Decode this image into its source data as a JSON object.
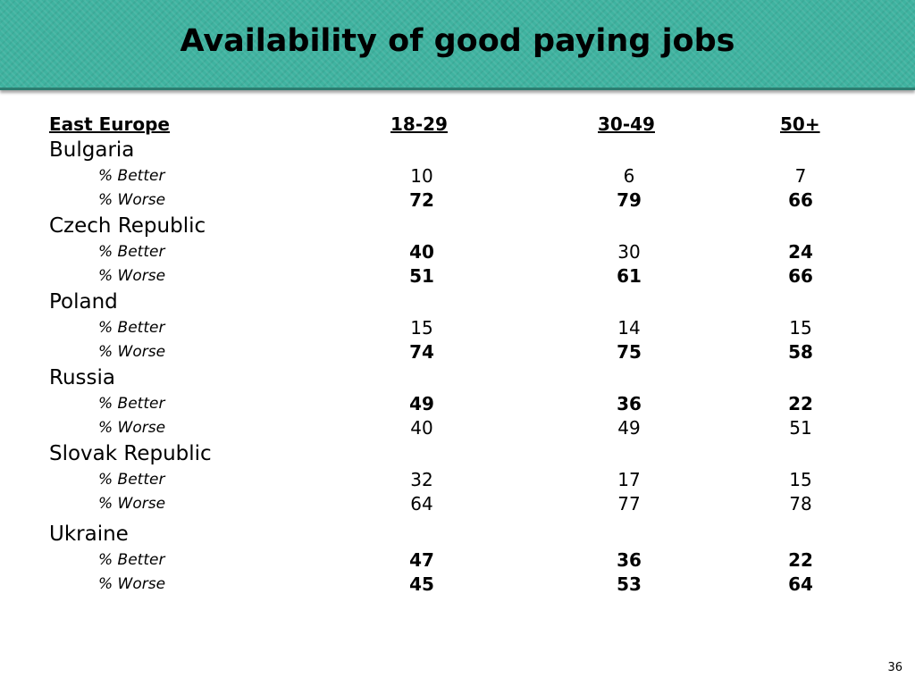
{
  "title": "Availability of good paying jobs",
  "header": {
    "region": "East Europe",
    "col1": "18-29",
    "col2": "30-49",
    "col3": "50+"
  },
  "countries": [
    {
      "name": "Bulgaria",
      "better": {
        "label": "% Better",
        "v1": "10",
        "v2": "6",
        "v3": "7",
        "b1": false,
        "b2": false,
        "b3": false
      },
      "worse": {
        "label": "% Worse",
        "v1": "72",
        "v2": "79",
        "v3": "66",
        "b1": true,
        "b2": true,
        "b3": true
      }
    },
    {
      "name": "Czech Republic",
      "better": {
        "label": "% Better",
        "v1": "40",
        "v2": "30",
        "v3": "24",
        "b1": true,
        "b2": false,
        "b3": true
      },
      "worse": {
        "label": "% Worse",
        "v1": "51",
        "v2": "61",
        "v3": "66",
        "b1": true,
        "b2": true,
        "b3": true
      }
    },
    {
      "name": "Poland",
      "better": {
        "label": "% Better",
        "v1": "15",
        "v2": "14",
        "v3": "15",
        "b1": false,
        "b2": false,
        "b3": false
      },
      "worse": {
        "label": "% Worse",
        "v1": "74",
        "v2": "75",
        "v3": "58",
        "b1": true,
        "b2": true,
        "b3": true
      }
    },
    {
      "name": "Russia",
      "better": {
        "label": "% Better",
        "v1": "49",
        "v2": "36",
        "v3": "22",
        "b1": true,
        "b2": true,
        "b3": true
      },
      "worse": {
        "label": "% Worse",
        "v1": "40",
        "v2": "49",
        "v3": "51",
        "b1": false,
        "b2": false,
        "b3": false
      }
    },
    {
      "name": "Slovak Republic",
      "better": {
        "label": "% Better",
        "v1": "32",
        "v2": "17",
        "v3": "15",
        "b1": false,
        "b2": false,
        "b3": false
      },
      "worse": {
        "label": "% Worse",
        "v1": "64",
        "v2": "77",
        "v3": "78",
        "b1": false,
        "b2": false,
        "b3": false
      }
    },
    {
      "name": "Ukraine",
      "better": {
        "label": "% Better",
        "v1": "47",
        "v2": "36",
        "v3": "22",
        "b1": true,
        "b2": true,
        "b3": true
      },
      "worse": {
        "label": "% Worse",
        "v1": "45",
        "v2": "53",
        "v3": "64",
        "b1": true,
        "b2": true,
        "b3": true
      }
    }
  ],
  "page_number": "36",
  "colors": {
    "title_band": "#3fb3a0",
    "title_band_edge": "#2c7d70",
    "text": "#000000",
    "background": "#ffffff"
  }
}
